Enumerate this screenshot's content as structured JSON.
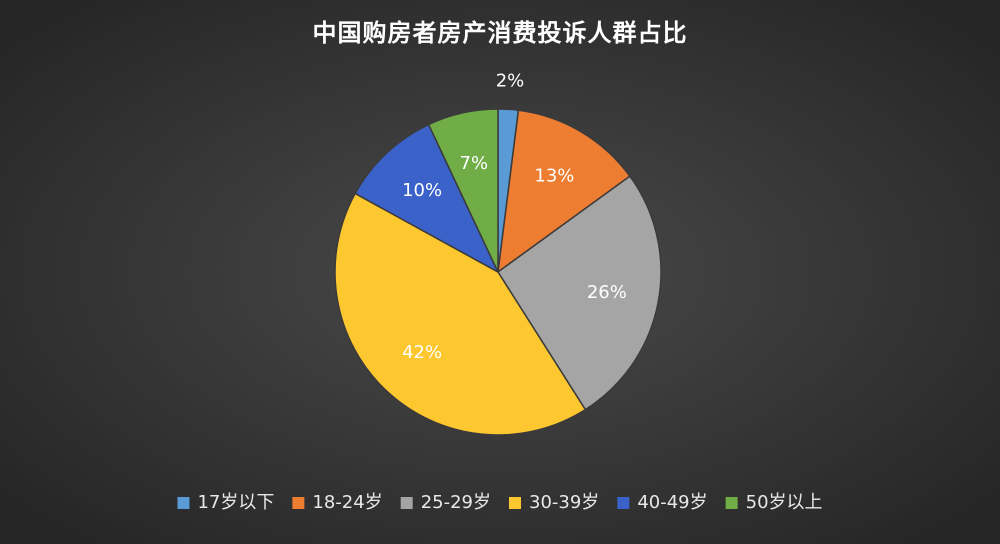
{
  "chart_data": {
    "type": "pie",
    "title": "中国购房者房产消费投诉人群占比",
    "categories": [
      "17岁以下",
      "18-24岁",
      "25-29岁",
      "30-39岁",
      "40-49岁",
      "50岁以上"
    ],
    "values": [
      2,
      13,
      26,
      42,
      10,
      7
    ],
    "value_labels": [
      "2%",
      "13%",
      "26%",
      "42%",
      "10%",
      "7%"
    ],
    "colors": [
      "#5b9bd5",
      "#ed7d31",
      "#a5a5a5",
      "#fdc72f",
      "#3b62c8",
      "#70ad47"
    ],
    "legend": "bottom"
  }
}
